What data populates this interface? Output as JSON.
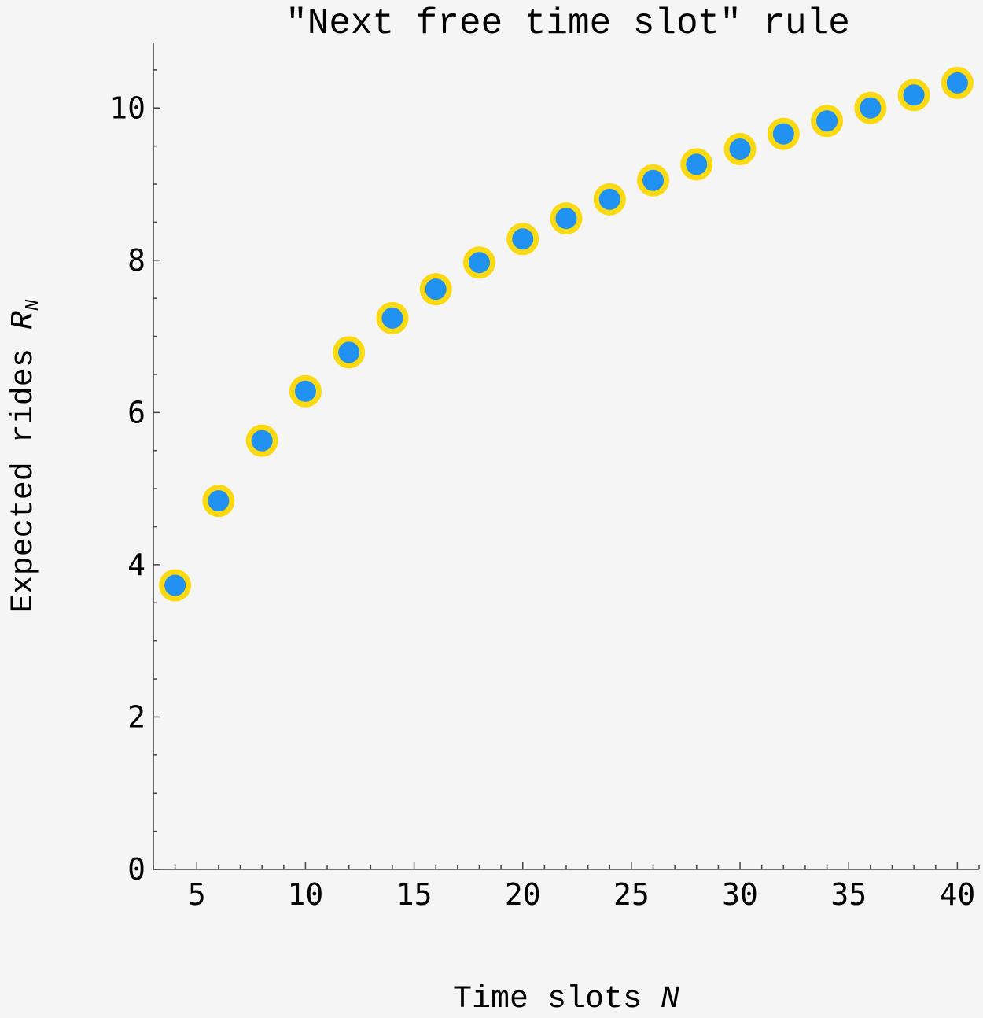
{
  "chart_data": {
    "type": "scatter",
    "title": "\"Next free time slot\" rule",
    "xlabel": "Time slots",
    "xlabel_var": "N",
    "ylabel": "Expected rides",
    "ylabel_var": "R",
    "ylabel_sub": "N",
    "xlim": [
      3,
      41
    ],
    "ylim": [
      0,
      10.85
    ],
    "xticks": [
      5,
      10,
      15,
      20,
      25,
      30,
      35,
      40
    ],
    "yticks": [
      0,
      2,
      4,
      6,
      8,
      10
    ],
    "grid": false,
    "marker_fill": "#2191f2",
    "marker_edge": "#fcd910",
    "x": [
      4,
      6,
      8,
      10,
      12,
      14,
      16,
      18,
      20,
      22,
      24,
      26,
      28,
      30,
      32,
      34,
      36,
      38,
      40
    ],
    "y": [
      3.73,
      4.84,
      5.63,
      6.28,
      6.79,
      7.24,
      7.62,
      7.97,
      8.28,
      8.55,
      8.8,
      9.05,
      9.26,
      9.46,
      9.66,
      9.83,
      10.0,
      10.17,
      10.33
    ]
  }
}
